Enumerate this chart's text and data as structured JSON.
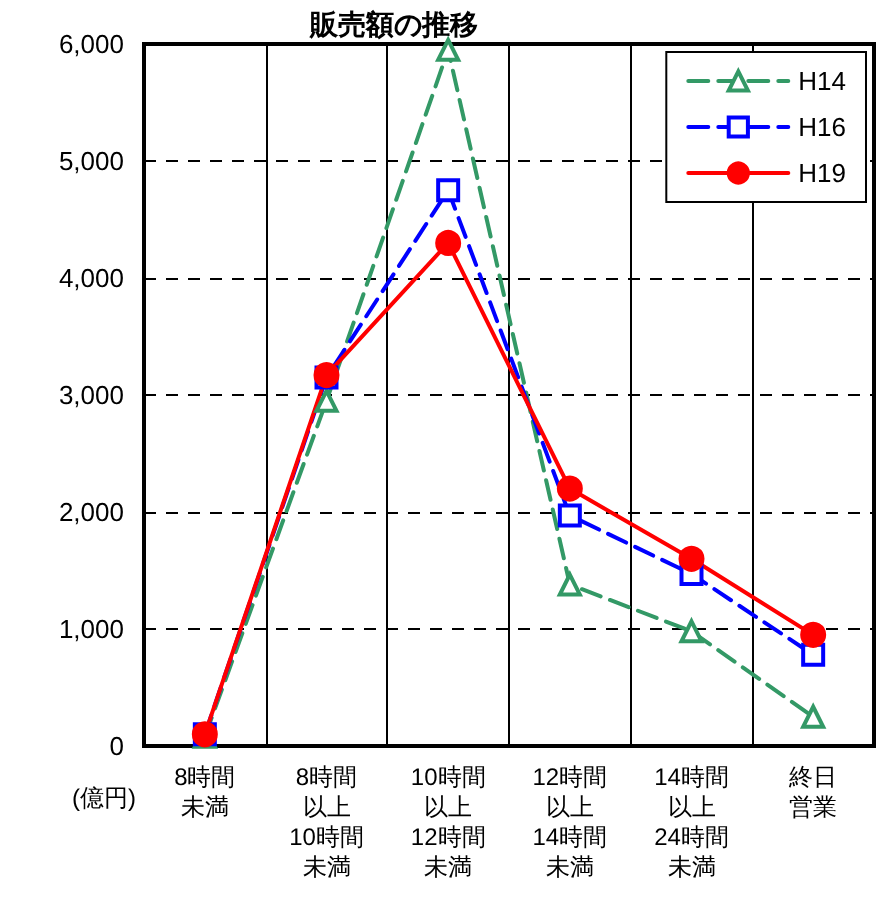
{
  "chart_data": {
    "type": "line",
    "title": "販売額の推移",
    "ylabel": "(億円)",
    "categories": [
      "8時間未満",
      "8時間以上10時間未満",
      "10時間以上12時間未満",
      "12時間以上14時間未満",
      "14時間以上24時間未満",
      "終日営業"
    ],
    "series": [
      {
        "name": "H14",
        "color": "#339966",
        "marker": "triangle",
        "line_style": "dashed",
        "values": [
          80,
          2950,
          5950,
          1380,
          980,
          250
        ]
      },
      {
        "name": "H16",
        "color": "#0000ff",
        "marker": "square",
        "line_style": "dashed",
        "values": [
          100,
          3150,
          4750,
          1970,
          1470,
          780
        ]
      },
      {
        "name": "H19",
        "color": "#ff0000",
        "marker": "circle",
        "line_style": "solid",
        "values": [
          100,
          3170,
          4300,
          2200,
          1600,
          950
        ]
      }
    ],
    "ylim": [
      0,
      6000
    ],
    "yticks": [
      {
        "value": 0,
        "label": "0"
      },
      {
        "value": 1000,
        "label": "1,000"
      },
      {
        "value": 2000,
        "label": "2,000"
      },
      {
        "value": 3000,
        "label": "3,000"
      },
      {
        "value": 4000,
        "label": "4,000"
      },
      {
        "value": 5000,
        "label": "5,000"
      },
      {
        "value": 6000,
        "label": "6,000"
      }
    ],
    "grid": true,
    "legend": "top right"
  }
}
